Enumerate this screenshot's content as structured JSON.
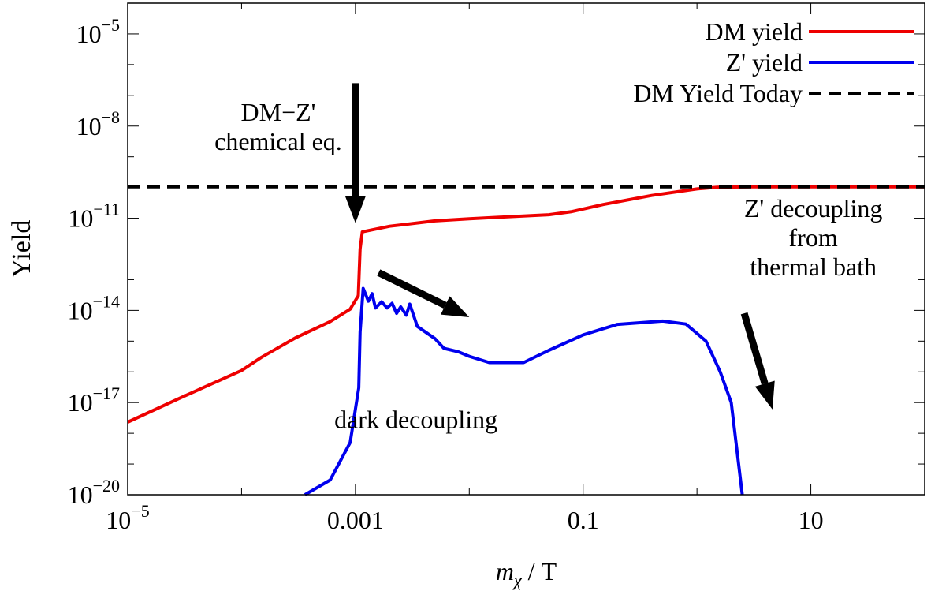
{
  "chart_data": {
    "type": "line",
    "xscale": "log",
    "yscale": "log",
    "xlim": [
      1e-05,
      100
    ],
    "ylim": [
      1e-20,
      0.0001
    ],
    "xlabel_var": "m",
    "xlabel_sub": "χ",
    "xlabel_rest": " / T",
    "ylabel": "Yield",
    "x_ticks": [
      {
        "value": 1e-05,
        "base": "10",
        "exp": "−5"
      },
      {
        "value": 0.001,
        "label": "0.001"
      },
      {
        "value": 0.1,
        "label": "0.1"
      },
      {
        "value": 10,
        "label": "10"
      }
    ],
    "y_ticks": [
      {
        "value": 1e-05,
        "base": "10",
        "exp": "−5"
      },
      {
        "value": 1e-08,
        "base": "10",
        "exp": "−8"
      },
      {
        "value": 1e-11,
        "base": "10",
        "exp": "−11"
      },
      {
        "value": 1e-14,
        "base": "10",
        "exp": "−14"
      },
      {
        "value": 1e-17,
        "base": "10",
        "exp": "−17"
      },
      {
        "value": 1e-20,
        "base": "10",
        "exp": "−20"
      }
    ],
    "legend_position": "top-right",
    "series": [
      {
        "name": "DM yield",
        "color": "#ee0000",
        "dash": "solid",
        "points": [
          [
            1e-05,
            2.3e-18
          ],
          [
            3e-05,
            1.5e-17
          ],
          [
            0.0001,
            1.1e-16
          ],
          [
            0.00015,
            3e-16
          ],
          [
            0.0003,
            1.3e-15
          ],
          [
            0.0006,
            4.3e-15
          ],
          [
            0.0009,
            1.1e-14
          ],
          [
            0.00106,
            3e-14
          ],
          [
            0.0011,
            1e-12
          ],
          [
            0.00115,
            3.6e-12
          ],
          [
            0.002,
            5.5e-12
          ],
          [
            0.005,
            8.2e-12
          ],
          [
            0.01,
            9.6e-12
          ],
          [
            0.02,
            1.1e-11
          ],
          [
            0.05,
            1.3e-11
          ],
          [
            0.08,
            1.65e-11
          ],
          [
            0.15,
            2.8e-11
          ],
          [
            0.4,
            5.5e-11
          ],
          [
            1,
            9e-11
          ],
          [
            1.5,
            1.02e-10
          ],
          [
            3,
            1.05e-10
          ],
          [
            100,
            1.05e-10
          ]
        ]
      },
      {
        "name": "Z' yield",
        "color": "#0000ee",
        "dash": "solid",
        "points": [
          [
            0.00036,
            1e-20
          ],
          [
            0.0006,
            3e-20
          ],
          [
            0.0009,
            5e-19
          ],
          [
            0.00107,
            3e-17
          ],
          [
            0.0011,
            2e-15
          ],
          [
            0.00117,
            5.2e-14
          ],
          [
            0.0013,
            2e-14
          ],
          [
            0.0014,
            3.5e-14
          ],
          [
            0.0015,
            1.2e-14
          ],
          [
            0.0017,
            1.9e-14
          ],
          [
            0.0019,
            1.2e-14
          ],
          [
            0.0021,
            1.7e-14
          ],
          [
            0.0023,
            8e-15
          ],
          [
            0.0025,
            1.3e-14
          ],
          [
            0.0028,
            7e-15
          ],
          [
            0.003,
            1.6e-14
          ],
          [
            0.0035,
            3e-15
          ],
          [
            0.005,
            1.2e-15
          ],
          [
            0.006,
            5.8e-16
          ],
          [
            0.008,
            4.5e-16
          ],
          [
            0.01,
            3.2e-16
          ],
          [
            0.015,
            2e-16
          ],
          [
            0.03,
            2e-16
          ],
          [
            0.05,
            5e-16
          ],
          [
            0.1,
            1.6e-15
          ],
          [
            0.2,
            3.5e-15
          ],
          [
            0.5,
            4.5e-15
          ],
          [
            0.8,
            3.6e-15
          ],
          [
            1.2,
            1e-15
          ],
          [
            1.6,
            1e-16
          ],
          [
            2,
            1e-17
          ],
          [
            2.5,
            1e-20
          ]
        ]
      },
      {
        "name": "DM Yield Today",
        "color": "#000000",
        "dash": "dashed",
        "points": [
          [
            1e-05,
            1.05e-10
          ],
          [
            100,
            1.05e-10
          ]
        ]
      }
    ],
    "annotations": [
      {
        "lines": [
          "DM−Z'",
          "chemical eq."
        ],
        "x": 0.00021,
        "y": 1.5e-08,
        "arrow_from": [
          0.001,
          2.5e-07
        ],
        "arrow_to": [
          0.001,
          7e-12
        ]
      },
      {
        "lines": [
          "Z' decoupling",
          "from",
          "thermal bath"
        ],
        "x": 10.5,
        "y": 1.1e-11,
        "arrow_from": [
          2.6,
          8e-15
        ],
        "arrow_to": [
          4.6,
          6e-18
        ]
      },
      {
        "lines": [
          "dark decoupling"
        ],
        "x": 0.0034,
        "y": 1.5e-18,
        "arrow_from": [
          0.0016,
          1.7e-13
        ],
        "arrow_to": [
          0.01,
          6e-15
        ]
      }
    ]
  }
}
